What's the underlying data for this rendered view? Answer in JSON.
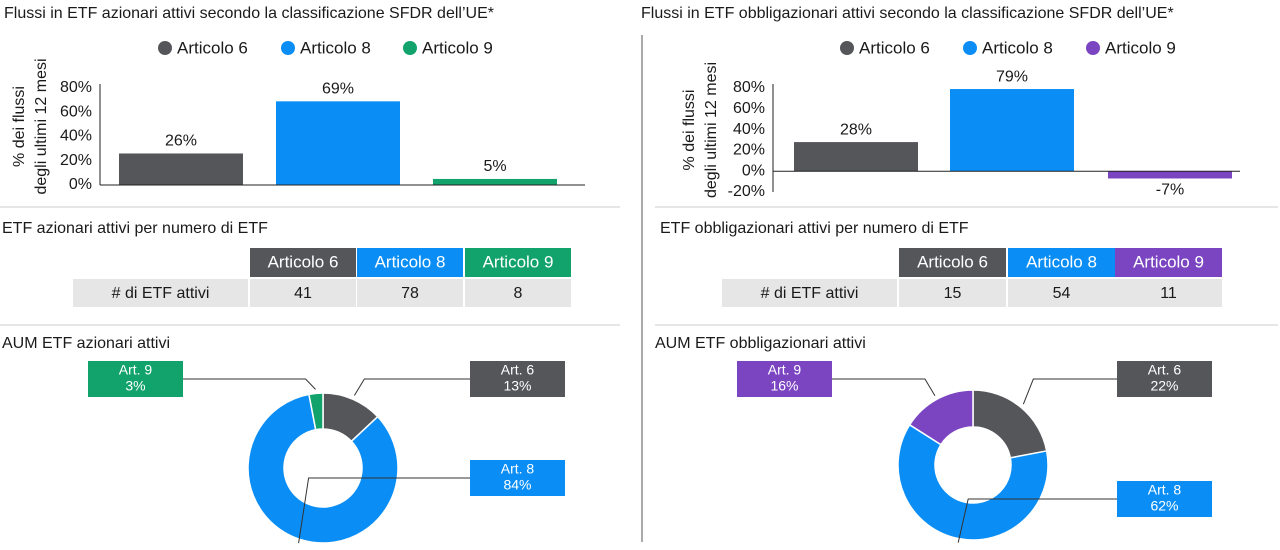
{
  "chart_data": [
    {
      "type": "bar",
      "title": "Flussi in ETF azionari attivi secondo la classificazione SFDR dell’UE*",
      "ylabel": [
        "% dei flussi",
        "degli ultimi 12 mesi"
      ],
      "series": [
        {
          "name": "Articolo 6",
          "color": "#54565a",
          "values": [
            26
          ],
          "value_labels": [
            "26%"
          ]
        },
        {
          "name": "Articolo 8",
          "color": "#0a8ef5",
          "values": [
            69
          ],
          "value_labels": [
            "69%"
          ]
        },
        {
          "name": "Articolo 9",
          "color": "#12a36c",
          "values": [
            5
          ],
          "value_labels": [
            "5%"
          ]
        }
      ],
      "ylim": [
        0,
        80
      ],
      "yticks": [
        {
          "value": 0,
          "label": "0%"
        },
        {
          "value": 20,
          "label": "20%"
        },
        {
          "value": 40,
          "label": "40%"
        },
        {
          "value": 60,
          "label": "60%"
        },
        {
          "value": 80,
          "label": "80%"
        }
      ]
    },
    {
      "type": "pie",
      "title": "AUM ETF azionari attivi",
      "categories": [
        "Art. 6",
        "Art. 8",
        "Art. 9"
      ],
      "values": [
        13,
        84,
        3
      ],
      "value_labels": [
        "13%",
        "84%",
        "3%"
      ],
      "colors": [
        "#54565a",
        "#0a8ef5",
        "#12a36c"
      ]
    },
    {
      "type": "bar",
      "title": "Flussi in ETF obbligazionari attivi secondo la classificazione SFDR dell’UE*",
      "ylabel": [
        "% dei flussi",
        "degli ultimi 12 mesi"
      ],
      "series": [
        {
          "name": "Articolo 6",
          "color": "#54565a",
          "values": [
            28
          ],
          "value_labels": [
            "28%"
          ]
        },
        {
          "name": "Articolo 8",
          "color": "#0a8ef5",
          "values": [
            79
          ],
          "value_labels": [
            "79%"
          ]
        },
        {
          "name": "Articolo 9",
          "color": "#7b45c2",
          "values": [
            -7
          ],
          "value_labels": [
            "-7%"
          ]
        }
      ],
      "ylim": [
        -20,
        80
      ],
      "yticks": [
        {
          "value": -20,
          "label": "-20%"
        },
        {
          "value": 0,
          "label": "0%"
        },
        {
          "value": 20,
          "label": "20%"
        },
        {
          "value": 40,
          "label": "40%"
        },
        {
          "value": 60,
          "label": "60%"
        },
        {
          "value": 80,
          "label": "80%"
        }
      ]
    },
    {
      "type": "pie",
      "title": "AUM ETF obbligazionari attivi",
      "categories": [
        "Art. 6",
        "Art. 8",
        "Art. 9"
      ],
      "values": [
        22,
        62,
        16
      ],
      "value_labels": [
        "22%",
        "62%",
        "16%"
      ],
      "colors": [
        "#54565a",
        "#0a8ef5",
        "#7b45c2"
      ]
    }
  ],
  "tables": [
    {
      "title": "ETF azionari attivi per numero di ETF",
      "columns": [
        "Articolo 6",
        "Articolo 8",
        "Articolo 9"
      ],
      "rows": [
        [
          "# di ETF attivi",
          41,
          78,
          8
        ]
      ]
    },
    {
      "title": "ETF obbligazionari attivi per numero di ETF",
      "columns": [
        "Articolo 6",
        "Articolo 8",
        "Articolo 9"
      ],
      "rows": [
        [
          "# di ETF attivi",
          15,
          54,
          11
        ]
      ]
    }
  ]
}
